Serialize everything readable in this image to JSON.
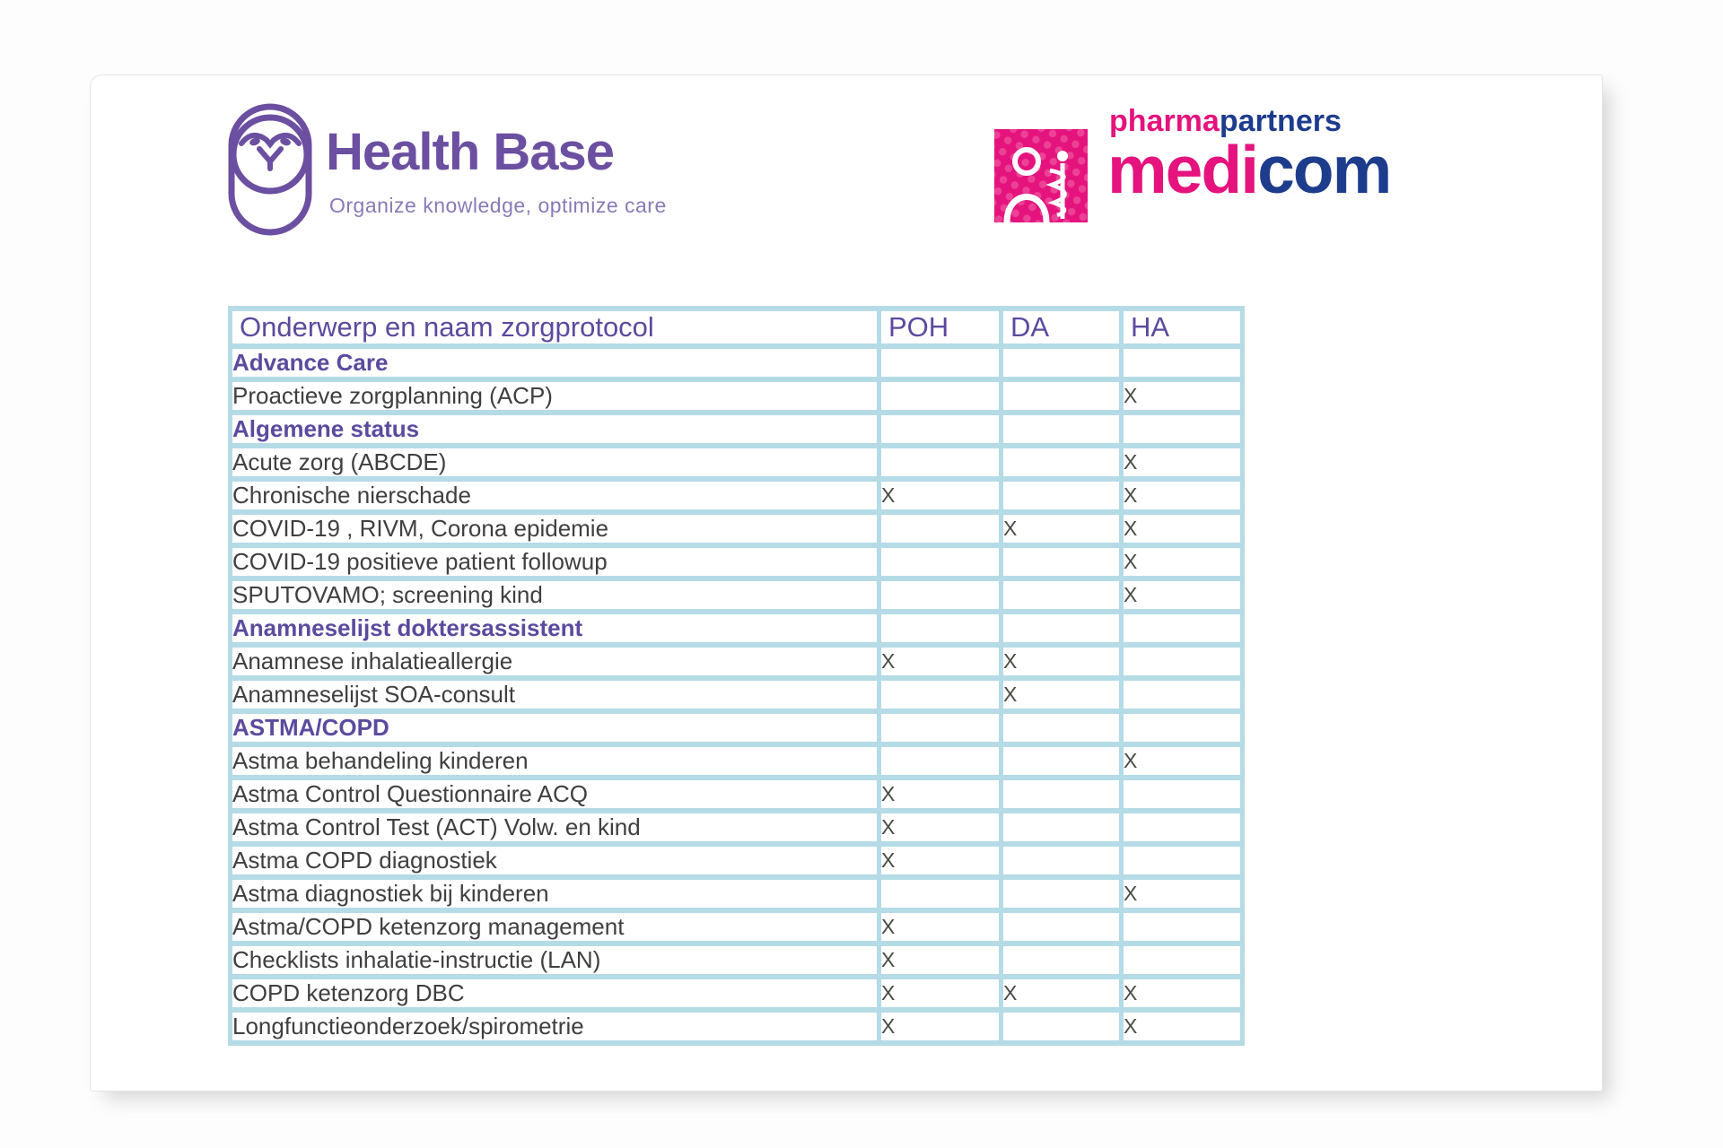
{
  "branding": {
    "health_base": {
      "name": "Health Base",
      "tagline": "Organize knowledge, optimize care",
      "accent_color": "#6b4fa1",
      "tagline_color": "#8a7ab8"
    },
    "pharmapartners": {
      "word1_pink": "pharma",
      "word1_navy": "partners",
      "word2_pink": "medi",
      "word2_navy": "com",
      "pink": "#e5137d",
      "navy": "#1e3c8c"
    }
  },
  "table": {
    "border_color": "#b5dbe7",
    "heading_color": "#5c4a9e",
    "columns": [
      "Onderwerp en naam zorgprotocol",
      "POH",
      "DA",
      "HA"
    ],
    "rows": [
      {
        "type": "category",
        "label": "Advance Care",
        "poh": "",
        "da": "",
        "ha": ""
      },
      {
        "type": "item",
        "label": "Proactieve zorgplanning (ACP)",
        "poh": "",
        "da": "",
        "ha": "X"
      },
      {
        "type": "category",
        "label": "Algemene status",
        "poh": "",
        "da": "",
        "ha": ""
      },
      {
        "type": "item",
        "label": "Acute zorg (ABCDE)",
        "poh": "",
        "da": "",
        "ha": "X"
      },
      {
        "type": "item",
        "label": "Chronische nierschade",
        "poh": "X",
        "da": "",
        "ha": "X"
      },
      {
        "type": "item",
        "label": "COVID-19 , RIVM, Corona epidemie",
        "poh": "",
        "da": "X",
        "ha": "X"
      },
      {
        "type": "item",
        "label": "COVID-19 positieve patient followup",
        "poh": "",
        "da": "",
        "ha": "X"
      },
      {
        "type": "item",
        "label": "SPUTOVAMO; screening kind",
        "poh": "",
        "da": "",
        "ha": "X"
      },
      {
        "type": "category",
        "label": "Anamneselijst doktersassistent",
        "poh": "",
        "da": "",
        "ha": ""
      },
      {
        "type": "item",
        "label": "Anamnese inhalatieallergie",
        "poh": "X",
        "da": "X",
        "ha": ""
      },
      {
        "type": "item",
        "label": "Anamneselijst SOA-consult",
        "poh": "",
        "da": "X",
        "ha": ""
      },
      {
        "type": "category",
        "label": "ASTMA/COPD",
        "poh": "",
        "da": "",
        "ha": ""
      },
      {
        "type": "item",
        "label": "Astma behandeling kinderen",
        "poh": "",
        "da": "",
        "ha": "X"
      },
      {
        "type": "item",
        "label": "Astma Control Questionnaire ACQ",
        "poh": "X",
        "da": "",
        "ha": ""
      },
      {
        "type": "item",
        "label": "Astma Control Test (ACT) Volw. en kind",
        "poh": "X",
        "da": "",
        "ha": ""
      },
      {
        "type": "item",
        "label": "Astma COPD diagnostiek",
        "poh": "X",
        "da": "",
        "ha": ""
      },
      {
        "type": "item",
        "label": "Astma diagnostiek bij kinderen",
        "poh": "",
        "da": "",
        "ha": "X"
      },
      {
        "type": "item",
        "label": "Astma/COPD ketenzorg management",
        "poh": "X",
        "da": "",
        "ha": ""
      },
      {
        "type": "item",
        "label": "Checklists inhalatie-instructie (LAN)",
        "poh": "X",
        "da": "",
        "ha": ""
      },
      {
        "type": "item",
        "label": "COPD ketenzorg DBC",
        "poh": "X",
        "da": "X",
        "ha": "X"
      },
      {
        "type": "item",
        "label": "Longfunctieonderzoek/spirometrie",
        "poh": "X",
        "da": "",
        "ha": "X"
      }
    ]
  }
}
